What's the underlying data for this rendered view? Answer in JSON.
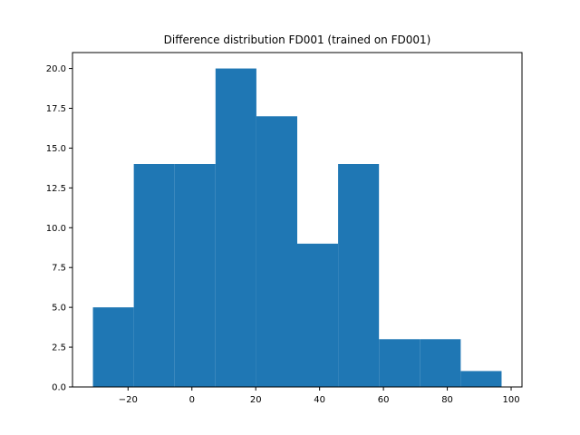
{
  "chart_data": {
    "type": "bar",
    "title": "Difference distribution FD001 (trained on FD001)",
    "xlabel": "",
    "ylabel": "",
    "bins": [
      {
        "start": -31,
        "end": -18.2,
        "count": 5
      },
      {
        "start": -18.2,
        "end": -5.4,
        "count": 14
      },
      {
        "start": -5.4,
        "end": 7.4,
        "count": 14
      },
      {
        "start": 7.4,
        "end": 20.2,
        "count": 20
      },
      {
        "start": 20.2,
        "end": 33.0,
        "count": 17
      },
      {
        "start": 33.0,
        "end": 45.8,
        "count": 9
      },
      {
        "start": 45.8,
        "end": 58.6,
        "count": 14
      },
      {
        "start": 58.6,
        "end": 71.4,
        "count": 3
      },
      {
        "start": 71.4,
        "end": 84.2,
        "count": 3
      },
      {
        "start": 84.2,
        "end": 97.0,
        "count": 1
      }
    ],
    "xlim": [
      -37.4,
      103.4
    ],
    "ylim": [
      0,
      21
    ],
    "xticks": [
      -20,
      0,
      20,
      40,
      60,
      80,
      100
    ],
    "xtick_labels": [
      "−20",
      "0",
      "20",
      "40",
      "60",
      "80",
      "100"
    ],
    "yticks": [
      0,
      2.5,
      5,
      7.5,
      10,
      12.5,
      15,
      17.5,
      20
    ],
    "ytick_labels": [
      "0.0",
      "2.5",
      "5.0",
      "7.5",
      "10.0",
      "12.5",
      "15.0",
      "17.5",
      "20.0"
    ],
    "bar_color": "#1f77b4",
    "grid": false
  }
}
